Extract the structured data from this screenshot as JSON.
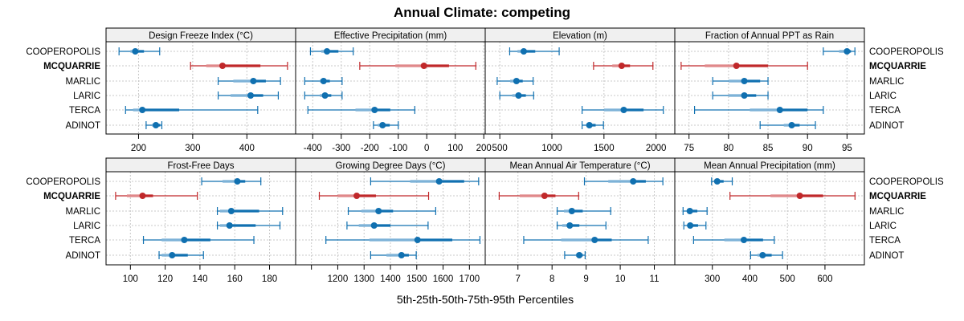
{
  "chart_data": {
    "type": "dotplot",
    "title": "Annual Climate: competing",
    "xlabel": "5th-25th-50th-75th-95th Percentiles",
    "highlight": "MCQUARRIE",
    "colors": {
      "default": "#1070B0",
      "highlight": "#C0282A",
      "default_light": "#7FB3D8",
      "highlight_light": "#E08A8C"
    },
    "rows": [
      "COOPEROPOLIS",
      "MCQUARRIE",
      "MARLIC",
      "LARIC",
      "TERCA",
      "ADINOT"
    ],
    "grid": true,
    "panels": [
      {
        "title": "Design Freeze Index (°C)",
        "xlim": [
          140,
          490
        ],
        "ticks": [
          200,
          300,
          400
        ],
        "tick_labels": [
          "200",
          "300",
          "400"
        ],
        "data": [
          [
            164,
            185,
            194,
            210,
            239
          ],
          [
            296,
            325,
            355,
            425,
            475
          ],
          [
            347,
            375,
            412,
            435,
            462
          ],
          [
            347,
            370,
            407,
            430,
            458
          ],
          [
            176,
            190,
            207,
            275,
            420
          ],
          [
            214,
            225,
            232,
            240,
            243
          ]
        ]
      },
      {
        "title": "Effective Precipitation (mm)",
        "xlim": [
          -460,
          205
        ],
        "ticks": [
          -400,
          -300,
          -200,
          -100,
          0,
          100,
          200
        ],
        "tick_labels": [
          "-400",
          "-300",
          "-200",
          "-100",
          "0",
          "100",
          "200"
        ],
        "data": [
          [
            -408,
            -370,
            -350,
            -310,
            -258
          ],
          [
            -235,
            -110,
            -10,
            78,
            172
          ],
          [
            -428,
            -375,
            -362,
            -340,
            -297
          ],
          [
            -428,
            -375,
            -357,
            -335,
            -297
          ],
          [
            -417,
            -250,
            -183,
            -128,
            -42
          ],
          [
            -187,
            -172,
            -155,
            -130,
            -100
          ]
        ]
      },
      {
        "title": "Elevation (m)",
        "xlim": [
          360,
          2180
        ],
        "ticks": [
          500,
          1000,
          1500,
          2000
        ],
        "tick_labels": [
          "500",
          "1000",
          "1500",
          "2000"
        ],
        "data": [
          [
            595,
            670,
            730,
            840,
            1070
          ],
          [
            1400,
            1580,
            1670,
            1750,
            1970
          ],
          [
            475,
            600,
            660,
            720,
            820
          ],
          [
            500,
            620,
            680,
            750,
            825
          ],
          [
            1290,
            1500,
            1690,
            1880,
            2070
          ],
          [
            1290,
            1330,
            1360,
            1420,
            1495
          ]
        ]
      },
      {
        "title": "Fraction of Annual PPT as Rain",
        "xlim": [
          73.2,
          97.2
        ],
        "ticks": [
          75,
          80,
          85,
          90,
          95
        ],
        "tick_labels": [
          "75",
          "80",
          "85",
          "90",
          "95"
        ],
        "data": [
          [
            92,
            94,
            95,
            95.5,
            96
          ],
          [
            74,
            77,
            81,
            85,
            90
          ],
          [
            78,
            80,
            82,
            84,
            85
          ],
          [
            78,
            80,
            82,
            83.5,
            85
          ],
          [
            75.7,
            82.7,
            86.5,
            90,
            92
          ],
          [
            84,
            87,
            88,
            89,
            91
          ]
        ]
      },
      {
        "title": "Frost-Free Days",
        "xlim": [
          86,
          195
        ],
        "ticks": [
          100,
          120,
          140,
          160,
          180
        ],
        "tick_labels": [
          "100",
          "120",
          "140",
          "160",
          "180"
        ],
        "data": [
          [
            141,
            153,
            161.5,
            166,
            175
          ],
          [
            91.5,
            98,
            107,
            113,
            138.5
          ],
          [
            150,
            151.5,
            158,
            174,
            187.5
          ],
          [
            150,
            151.5,
            157,
            172,
            186
          ],
          [
            107.5,
            118,
            131,
            146,
            171
          ],
          [
            116.5,
            118,
            124,
            133,
            142
          ]
        ]
      },
      {
        "title": "Growing Degree Days (°C)",
        "xlim": [
          1040,
          1760
        ],
        "ticks": [
          1100,
          1200,
          1300,
          1400,
          1500,
          1600,
          1700
        ],
        "tick_labels": [
          "",
          "1200",
          "1300",
          "1400",
          "1500",
          "1600",
          "1700"
        ],
        "data": [
          [
            1325,
            1475,
            1585,
            1680,
            1735
          ],
          [
            1130,
            1200,
            1272,
            1345,
            1545
          ],
          [
            1240,
            1290,
            1355,
            1410,
            1572
          ],
          [
            1235,
            1280,
            1338,
            1400,
            1543
          ],
          [
            1155,
            1320,
            1503,
            1635,
            1740
          ],
          [
            1325,
            1385,
            1442,
            1470,
            1498
          ]
        ]
      },
      {
        "title": "Mean Annual Air Temperature (°C)",
        "xlim": [
          6.04,
          11.6
        ],
        "ticks": [
          7,
          8,
          9,
          10,
          11
        ],
        "tick_labels": [
          "7",
          "8",
          "9",
          "10",
          "11"
        ],
        "data": [
          [
            8.95,
            9.65,
            10.38,
            10.75,
            11.25
          ],
          [
            6.45,
            7.05,
            7.78,
            8.1,
            8.78
          ],
          [
            8.15,
            8.35,
            8.58,
            8.9,
            9.72
          ],
          [
            8.15,
            8.3,
            8.52,
            8.8,
            9.58
          ],
          [
            7.17,
            8.27,
            9.25,
            9.75,
            10.82
          ],
          [
            8.37,
            8.7,
            8.8,
            8.9,
            8.97
          ]
        ]
      },
      {
        "title": "Mean Annual Precipitation (mm)",
        "xlim": [
          200,
          705
        ],
        "ticks": [
          300,
          400,
          500,
          600
        ],
        "tick_labels": [
          "300",
          "400",
          "500",
          "600"
        ],
        "data": [
          [
            298,
            305,
            313,
            330,
            353
          ],
          [
            347,
            455,
            533,
            595,
            680
          ],
          [
            222,
            232,
            240,
            260,
            286
          ],
          [
            224,
            233,
            241,
            262,
            283
          ],
          [
            250,
            332,
            384,
            435,
            465
          ],
          [
            402,
            420,
            434,
            458,
            487
          ]
        ]
      }
    ]
  }
}
